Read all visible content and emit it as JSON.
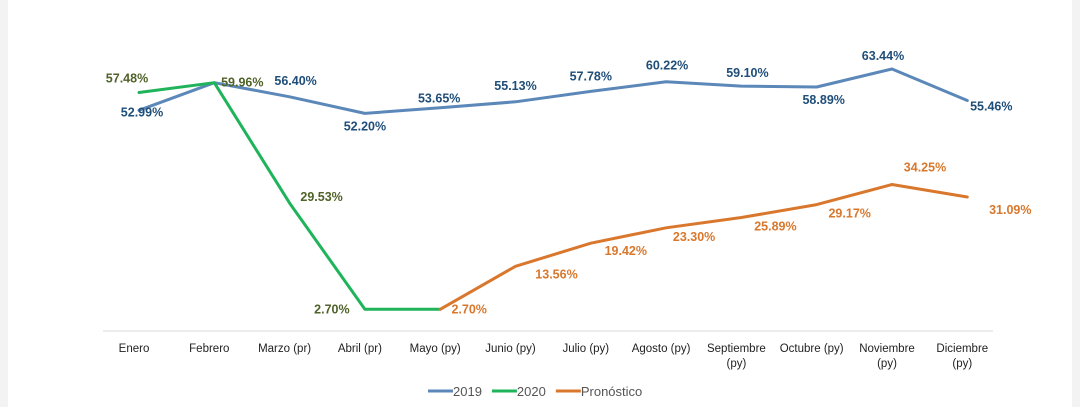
{
  "chart_data": {
    "type": "line",
    "categories": [
      "Enero",
      "Febrero",
      "Marzo (pr)",
      "Abril (pr)",
      "Mayo (py)",
      "Junio (py)",
      "Julio (py)",
      "Agosto (py)",
      "Septiembre\n(py)",
      "Octubre (py)",
      "Noviembre\n(py)",
      "Diciembre\n(py)"
    ],
    "series": [
      {
        "name": "2019",
        "color": "#5b88b9",
        "label_color": "#1f4e79",
        "values": [
          52.99,
          59.96,
          56.4,
          52.2,
          53.65,
          55.13,
          57.78,
          60.22,
          59.1,
          58.89,
          63.44,
          55.46
        ],
        "labels": [
          "52.99%",
          null,
          "56.40%",
          "52.20%",
          "53.65%",
          "55.13%",
          "57.78%",
          "60.22%",
          "59.10%",
          "58.89%",
          "63.44%",
          "55.46%"
        ]
      },
      {
        "name": "2020",
        "color": "#1fb45a",
        "label_color": "#4f6228",
        "values": [
          57.48,
          59.96,
          29.53,
          2.7,
          2.7,
          null,
          null,
          null,
          null,
          null,
          null,
          null
        ],
        "labels": [
          "57.48%",
          "59.96%",
          "29.53%",
          "2.70%",
          null,
          null,
          null,
          null,
          null,
          null,
          null,
          null
        ]
      },
      {
        "name": "Pronóstico",
        "color": "#d9782d",
        "label_color": "#d9782d",
        "values": [
          null,
          null,
          null,
          null,
          2.7,
          13.56,
          19.42,
          23.3,
          25.89,
          29.17,
          34.25,
          31.09
        ],
        "labels": [
          null,
          null,
          null,
          null,
          "2.70%",
          "13.56%",
          "19.42%",
          "23.30%",
          "25.89%",
          "29.17%",
          "34.25%",
          "31.09%"
        ]
      }
    ],
    "ylim": [
      0,
      70
    ],
    "grid": false,
    "legend_position": "bottom"
  }
}
